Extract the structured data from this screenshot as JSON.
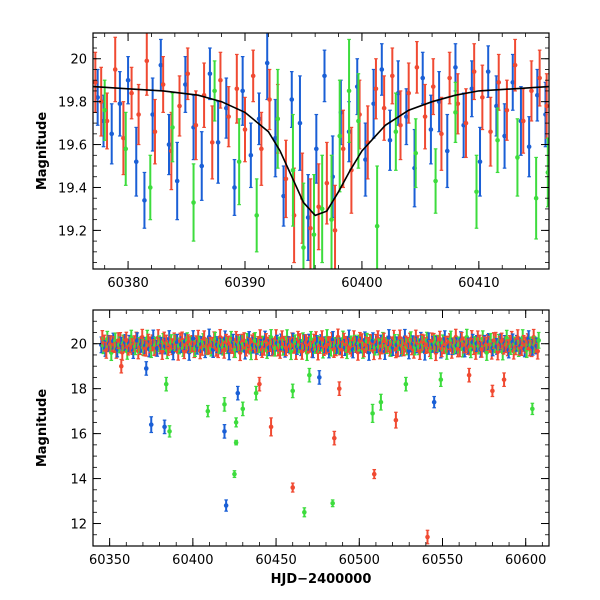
{
  "colors": {
    "blue": "#1a5fd6",
    "red": "#f04a32",
    "green": "#3ddc3d",
    "model": "#000000",
    "frame": "#000000"
  },
  "chart_data": [
    {
      "type": "scatter",
      "panel": "top",
      "title": "",
      "xlabel": "",
      "ylabel": "Magnitude",
      "xlim": [
        60377,
        60416
      ],
      "ylim": [
        20.12,
        19.02
      ],
      "y_inverted": true,
      "grid": false,
      "legend": "none",
      "xticks": [
        60380,
        60390,
        60400,
        60410
      ],
      "yticks": [
        19.2,
        19.4,
        19.6,
        19.8,
        20
      ],
      "xtick_labels": [
        "60380",
        "60390",
        "60400",
        "60410"
      ],
      "ytick_labels": [
        "19.2",
        "19.4",
        "19.6",
        "19.8",
        "20"
      ],
      "model_curve": {
        "type": "line",
        "x": [
          60377,
          60380,
          60383,
          60386,
          60388,
          60390,
          60392,
          60393,
          60394,
          60395,
          60396,
          60397,
          60398,
          60399,
          60400,
          60402,
          60404,
          60406,
          60408,
          60410,
          60413,
          60416
        ],
        "y": [
          19.87,
          19.86,
          19.85,
          19.83,
          19.8,
          19.75,
          19.66,
          19.57,
          19.45,
          19.33,
          19.27,
          19.29,
          19.38,
          19.48,
          19.57,
          19.69,
          19.76,
          19.8,
          19.83,
          19.85,
          19.86,
          19.87
        ]
      },
      "series": [
        {
          "color": "blue",
          "x": [
            60377.4,
            60377.9,
            60378.6,
            60379.3,
            60380.0,
            60380.7,
            60381.4,
            60382.1,
            60382.8,
            60383.5,
            60384.2,
            60384.9,
            60385.6,
            60386.3,
            60387.0,
            60387.7,
            60388.4,
            60389.1,
            60389.8,
            60390.5,
            60391.2,
            60391.9,
            60392.6,
            60393.3,
            60394.0,
            60394.7,
            60395.4,
            60396.1,
            60396.8,
            60397.5,
            60398.2,
            60398.9,
            60399.6,
            60400.3,
            60401.0,
            60401.7,
            60402.4,
            60403.1,
            60403.8,
            60404.5,
            60405.2,
            60405.9,
            60406.6,
            60407.3,
            60408.0,
            60408.7,
            60409.4,
            60410.1,
            60410.8,
            60411.5,
            60412.2,
            60412.9,
            60413.6,
            60414.3,
            60415.0,
            60415.7
          ],
          "y": [
            19.82,
            19.71,
            19.65,
            19.79,
            19.9,
            19.52,
            19.34,
            19.74,
            19.97,
            19.6,
            19.43,
            19.88,
            19.68,
            19.5,
            19.93,
            19.61,
            19.77,
            19.4,
            19.85,
            19.55,
            19.72,
            19.98,
            19.63,
            19.36,
            19.81,
            19.7,
            19.26,
            19.58,
            19.92,
            19.45,
            19.75,
            19.66,
            19.87,
            19.53,
            19.79,
            19.95,
            19.62,
            19.84,
            19.73,
            19.49,
            19.91,
            19.67,
            19.8,
            19.57,
            19.96,
            19.69,
            19.86,
            19.52,
            19.94,
            19.78,
            19.64,
            19.89,
            19.71,
            19.59,
            19.83,
            19.74
          ],
          "err": [
            0.13,
            0.12,
            0.14,
            0.15,
            0.11,
            0.16,
            0.13,
            0.17,
            0.12,
            0.14,
            0.18,
            0.13,
            0.15,
            0.16,
            0.12,
            0.19,
            0.14,
            0.13,
            0.16,
            0.15,
            0.12,
            0.17,
            0.18,
            0.14,
            0.13,
            0.22,
            0.2,
            0.16,
            0.12,
            0.19,
            0.15,
            0.14,
            0.13,
            0.17,
            0.16,
            0.12,
            0.14,
            0.15,
            0.13,
            0.18,
            0.12,
            0.16,
            0.14,
            0.17,
            0.11,
            0.15,
            0.13,
            0.16,
            0.12,
            0.14,
            0.15,
            0.13,
            0.16,
            0.14,
            0.12,
            0.15
          ]
        },
        {
          "color": "red",
          "x": [
            60377.2,
            60377.7,
            60378.2,
            60378.9,
            60379.6,
            60380.3,
            60380.9,
            60381.6,
            60382.3,
            60383.0,
            60383.7,
            60384.4,
            60385.1,
            60385.8,
            60386.5,
            60387.2,
            60387.9,
            60388.6,
            60389.3,
            60390.0,
            60390.7,
            60391.4,
            60392.1,
            60392.8,
            60393.5,
            60394.2,
            60394.9,
            60395.6,
            60396.3,
            60397.0,
            60397.7,
            60398.4,
            60399.1,
            60399.8,
            60400.5,
            60401.2,
            60401.9,
            60402.6,
            60403.3,
            60404.0,
            60404.7,
            60405.4,
            60406.1,
            60406.8,
            60407.5,
            60408.2,
            60408.9,
            60409.6,
            60410.3,
            60411.0,
            60411.7,
            60412.4,
            60413.1,
            60413.8,
            60414.5,
            60415.2,
            60415.8
          ],
          "y": [
            19.89,
            19.8,
            19.71,
            19.95,
            19.63,
            19.84,
            19.74,
            19.99,
            19.66,
            19.88,
            19.57,
            19.78,
            19.93,
            19.69,
            19.83,
            19.61,
            19.9,
            19.73,
            19.86,
            19.67,
            19.92,
            19.58,
            19.81,
            19.72,
            19.44,
            19.27,
            19.35,
            19.21,
            19.31,
            19.42,
            19.2,
            19.58,
            19.48,
            19.74,
            19.61,
            19.86,
            19.77,
            19.92,
            19.69,
            19.84,
            19.96,
            19.73,
            19.87,
            19.65,
            19.91,
            19.79,
            19.7,
            19.94,
            19.82,
            19.66,
            19.89,
            19.76,
            19.97,
            19.71,
            19.85,
            19.91,
            19.78
          ],
          "err": [
            0.14,
            0.16,
            0.13,
            0.15,
            0.17,
            0.12,
            0.14,
            0.16,
            0.15,
            0.13,
            0.18,
            0.14,
            0.12,
            0.16,
            0.15,
            0.17,
            0.13,
            0.14,
            0.16,
            0.15,
            0.12,
            0.17,
            0.14,
            0.16,
            0.18,
            0.22,
            0.21,
            0.23,
            0.2,
            0.19,
            0.21,
            0.18,
            0.2,
            0.16,
            0.17,
            0.14,
            0.15,
            0.13,
            0.16,
            0.14,
            0.12,
            0.15,
            0.13,
            0.17,
            0.12,
            0.14,
            0.16,
            0.13,
            0.15,
            0.16,
            0.13,
            0.14,
            0.12,
            0.15,
            0.14,
            0.13,
            0.15
          ]
        },
        {
          "color": "green",
          "x": [
            60378.0,
            60379.8,
            60381.9,
            60383.8,
            60385.6,
            60387.4,
            60389.5,
            60391.0,
            60392.8,
            60394.1,
            60395.0,
            60395.9,
            60396.6,
            60397.4,
            60398.1,
            60398.9,
            60399.7,
            60401.3,
            60402.9,
            60404.6,
            60406.3,
            60408.0,
            60409.8,
            60411.6,
            60413.3,
            60414.9,
            60415.9
          ],
          "y": [
            19.76,
            19.58,
            19.4,
            19.68,
            19.33,
            19.85,
            19.52,
            19.27,
            19.72,
            19.48,
            19.12,
            19.18,
            19.3,
            19.25,
            19.64,
            19.85,
            19.71,
            19.22,
            19.66,
            19.56,
            19.43,
            19.75,
            19.38,
            19.62,
            19.54,
            19.35,
            19.47
          ],
          "err": [
            0.14,
            0.17,
            0.15,
            0.16,
            0.18,
            0.14,
            0.2,
            0.17,
            0.23,
            0.26,
            0.3,
            0.28,
            0.25,
            0.3,
            0.26,
            0.24,
            0.22,
            0.28,
            0.18,
            0.16,
            0.15,
            0.14,
            0.17,
            0.15,
            0.18,
            0.19,
            0.16
          ]
        }
      ]
    },
    {
      "type": "scatter",
      "panel": "bottom",
      "title": "",
      "xlabel": "HJD−2400000",
      "ylabel": "Magnitude",
      "xlim": [
        60340,
        60614
      ],
      "ylim": [
        21.5,
        11.0
      ],
      "y_inverted": true,
      "grid": false,
      "legend": "none",
      "xticks": [
        60350,
        60400,
        60450,
        60500,
        60550,
        60600
      ],
      "yticks": [
        12,
        14,
        16,
        18,
        20
      ],
      "xtick_labels": [
        "60350",
        "60400",
        "60450",
        "60500",
        "60550",
        "60600"
      ],
      "ytick_labels": [
        "12",
        "14",
        "16",
        "18",
        "20"
      ],
      "baseline": {
        "x_start": 60345,
        "x_end": 60608,
        "step": 0.6,
        "y_center": 19.95,
        "y_scatter": 0.35,
        "err": 0.35,
        "colors": [
          "blue",
          "red",
          "green",
          "red"
        ]
      },
      "outliers": [
        {
          "color": "blue",
          "x": 60420,
          "y": 12.8,
          "err": 0.25
        },
        {
          "color": "blue",
          "x": 60375,
          "y": 16.4,
          "err": 0.35
        },
        {
          "color": "blue",
          "x": 60383,
          "y": 16.3,
          "err": 0.3
        },
        {
          "color": "blue",
          "x": 60419,
          "y": 16.1,
          "err": 0.3
        },
        {
          "color": "blue",
          "x": 60427,
          "y": 17.8,
          "err": 0.3
        },
        {
          "color": "blue",
          "x": 60545,
          "y": 17.4,
          "err": 0.25
        },
        {
          "color": "blue",
          "x": 60372,
          "y": 18.9,
          "err": 0.3
        },
        {
          "color": "blue",
          "x": 60476,
          "y": 18.5,
          "err": 0.3
        },
        {
          "color": "green",
          "x": 60425,
          "y": 14.2,
          "err": 0.15
        },
        {
          "color": "green",
          "x": 60467,
          "y": 12.5,
          "err": 0.2
        },
        {
          "color": "green",
          "x": 60484,
          "y": 12.9,
          "err": 0.15
        },
        {
          "color": "green",
          "x": 60386,
          "y": 16.1,
          "err": 0.25
        },
        {
          "color": "green",
          "x": 60426,
          "y": 15.6,
          "err": 0.1
        },
        {
          "color": "green",
          "x": 60426,
          "y": 16.5,
          "err": 0.2
        },
        {
          "color": "green",
          "x": 60409,
          "y": 17.0,
          "err": 0.25
        },
        {
          "color": "green",
          "x": 60419,
          "y": 17.3,
          "err": 0.3
        },
        {
          "color": "green",
          "x": 60430,
          "y": 17.1,
          "err": 0.3
        },
        {
          "color": "green",
          "x": 60438,
          "y": 17.8,
          "err": 0.3
        },
        {
          "color": "green",
          "x": 60384,
          "y": 18.2,
          "err": 0.3
        },
        {
          "color": "green",
          "x": 60460,
          "y": 17.9,
          "err": 0.3
        },
        {
          "color": "green",
          "x": 60508,
          "y": 16.9,
          "err": 0.4
        },
        {
          "color": "green",
          "x": 60513,
          "y": 17.4,
          "err": 0.35
        },
        {
          "color": "green",
          "x": 60528,
          "y": 18.2,
          "err": 0.3
        },
        {
          "color": "green",
          "x": 60549,
          "y": 18.4,
          "err": 0.3
        },
        {
          "color": "green",
          "x": 60604,
          "y": 17.1,
          "err": 0.25
        },
        {
          "color": "green",
          "x": 60470,
          "y": 18.6,
          "err": 0.3
        },
        {
          "color": "red",
          "x": 60541,
          "y": 11.4,
          "err": 0.3
        },
        {
          "color": "red",
          "x": 60460,
          "y": 13.6,
          "err": 0.2
        },
        {
          "color": "red",
          "x": 60509,
          "y": 14.2,
          "err": 0.2
        },
        {
          "color": "red",
          "x": 60485,
          "y": 15.8,
          "err": 0.3
        },
        {
          "color": "red",
          "x": 60447,
          "y": 16.3,
          "err": 0.4
        },
        {
          "color": "red",
          "x": 60522,
          "y": 16.6,
          "err": 0.35
        },
        {
          "color": "red",
          "x": 60440,
          "y": 18.2,
          "err": 0.3
        },
        {
          "color": "red",
          "x": 60488,
          "y": 18.0,
          "err": 0.3
        },
        {
          "color": "red",
          "x": 60566,
          "y": 18.6,
          "err": 0.3
        },
        {
          "color": "red",
          "x": 60587,
          "y": 18.4,
          "err": 0.3
        },
        {
          "color": "red",
          "x": 60357,
          "y": 19.0,
          "err": 0.3
        },
        {
          "color": "red",
          "x": 60580,
          "y": 17.9,
          "err": 0.25
        }
      ]
    }
  ]
}
